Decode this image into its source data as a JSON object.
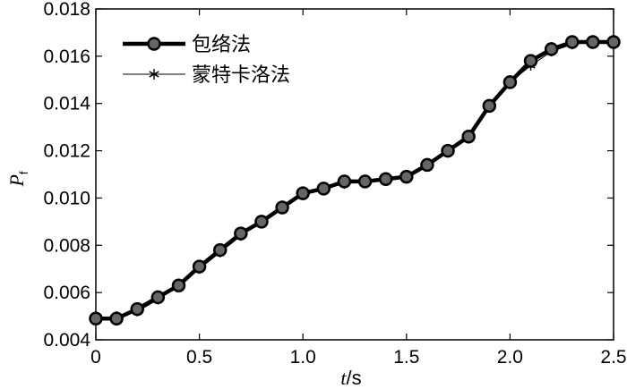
{
  "chart_data": {
    "type": "line",
    "xlabel_var": "t",
    "xlabel_unit": "/s",
    "ylabel_var": "P",
    "ylabel_sub": "f",
    "xlim": [
      0,
      2.5
    ],
    "ylim": [
      0.004,
      0.018
    ],
    "x_ticks": [
      "0",
      "0.5",
      "1.0",
      "1.5",
      "2.0",
      "2.5"
    ],
    "y_ticks": [
      "0.004",
      "0.006",
      "0.008",
      "0.010",
      "0.012",
      "0.014",
      "0.016",
      "0.018"
    ],
    "x_tick_values": [
      0,
      0.5,
      1.0,
      1.5,
      2.0,
      2.5
    ],
    "y_tick_values": [
      0.004,
      0.006,
      0.008,
      0.01,
      0.012,
      0.014,
      0.016,
      0.018
    ],
    "grid": false,
    "legend_position": "top-left",
    "x": [
      0,
      0.1,
      0.2,
      0.3,
      0.4,
      0.5,
      0.6,
      0.7,
      0.8,
      0.9,
      1.0,
      1.1,
      1.2,
      1.3,
      1.4,
      1.5,
      1.6,
      1.7,
      1.8,
      1.9,
      2.0,
      2.1,
      2.2,
      2.3,
      2.4,
      2.5
    ],
    "series": [
      {
        "name": "包络法",
        "marker": "circle",
        "color": "#000000",
        "values": [
          0.0049,
          0.0049,
          0.0053,
          0.0058,
          0.0063,
          0.0071,
          0.0078,
          0.0085,
          0.009,
          0.0096,
          0.0102,
          0.0104,
          0.0107,
          0.0107,
          0.0108,
          0.0109,
          0.0114,
          0.012,
          0.0126,
          0.0139,
          0.0149,
          0.0158,
          0.0163,
          0.0166,
          0.0166,
          0.0166
        ]
      },
      {
        "name": "蒙特卡洛法",
        "marker": "star",
        "color": "#000000",
        "values": [
          0.0049,
          0.005,
          0.0052,
          0.0057,
          0.0063,
          0.007,
          0.0077,
          0.0084,
          0.009,
          0.0096,
          0.0102,
          0.0104,
          0.0106,
          0.0107,
          0.0108,
          0.0109,
          0.0114,
          0.012,
          0.0126,
          0.0139,
          0.0149,
          0.0156,
          0.0162,
          0.0165,
          0.0166,
          0.0166
        ]
      }
    ]
  }
}
